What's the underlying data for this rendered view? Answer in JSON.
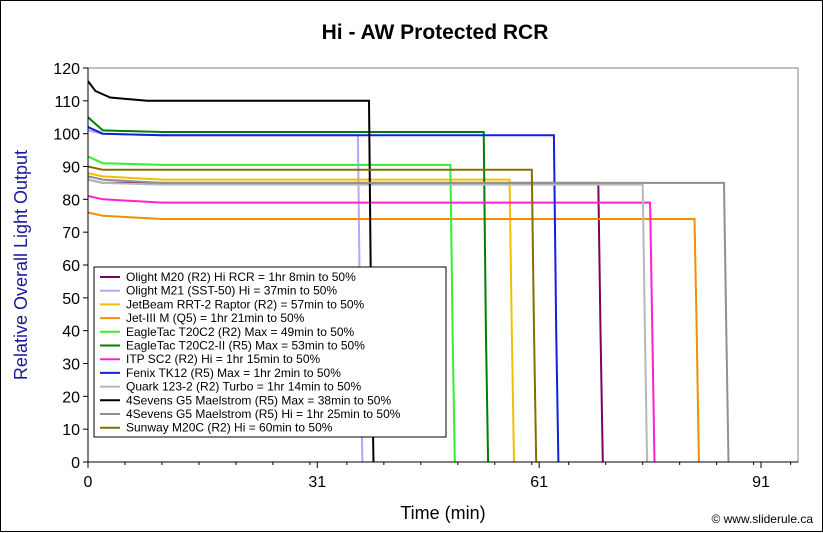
{
  "chart_data": {
    "type": "line",
    "title": "Hi - AW Protected RCR",
    "xlabel": "Time (min)",
    "ylabel": "Relative Overall Light Output",
    "xlim": [
      0,
      96
    ],
    "ylim": [
      0,
      120
    ],
    "x_ticks": [
      0,
      31,
      61,
      91
    ],
    "y_ticks": [
      0,
      10,
      20,
      30,
      40,
      50,
      60,
      70,
      80,
      90,
      100,
      110,
      120
    ],
    "grid": false,
    "legend_position": "lower-left",
    "credit": "© www.sliderule.ca",
    "series": [
      {
        "name": "Olight M20 (R2) Hi RCR = 1hr 8min to 50%",
        "color": "#800060",
        "x": [
          0,
          2,
          10,
          69,
          69.3,
          69.6
        ],
        "y": [
          86,
          85,
          85,
          85,
          40,
          0
        ]
      },
      {
        "name": "Olight M21 (SST-50) Hi = 37min to 50%",
        "color": "#c0a0ff",
        "x": [
          0,
          2,
          10,
          36.5,
          36.8,
          37.1
        ],
        "y": [
          101,
          100,
          99.5,
          99.5,
          40,
          0
        ]
      },
      {
        "name": "JetBeam RRT-2 Raptor (R2) = 57min to 50%",
        "color": "#f0c000",
        "x": [
          0,
          2,
          10,
          57,
          57.3,
          57.6
        ],
        "y": [
          88,
          87,
          86,
          86,
          40,
          0
        ]
      },
      {
        "name": "Jet-III M (Q5) = 1hr 21min to 50%",
        "color": "#f09000",
        "x": [
          0,
          2,
          10,
          82,
          82.3,
          82.6
        ],
        "y": [
          76,
          75,
          74,
          74,
          40,
          0
        ]
      },
      {
        "name": "EagleTac T20C2 (R2) Max = 49min to 50%",
        "color": "#33ee33",
        "x": [
          0,
          2,
          10,
          49,
          49.3,
          49.6
        ],
        "y": [
          93,
          91,
          90.5,
          90.5,
          40,
          0
        ]
      },
      {
        "name": "EagleTac T20C2-II (R5) Max = 53min to 50%",
        "color": "#008000",
        "x": [
          0,
          2,
          10,
          53.5,
          53.8,
          54.1
        ],
        "y": [
          105,
          101,
          100.5,
          100.5,
          40,
          0
        ]
      },
      {
        "name": "ITP SC2 (R2) Hi = 1hr 15min to 50%",
        "color": "#ff20d0",
        "x": [
          0,
          2,
          10,
          76,
          76.3,
          76.6
        ],
        "y": [
          81,
          80,
          79,
          79,
          40,
          0
        ]
      },
      {
        "name": "Fenix TK12 (R5) Max = 1hr 2min to 50%",
        "color": "#1020e0",
        "x": [
          0,
          2,
          10,
          63,
          63.3,
          63.6
        ],
        "y": [
          102,
          100,
          99.5,
          99.5,
          40,
          0
        ]
      },
      {
        "name": "Quark 123-2 (R2) Turbo = 1hr 14min to 50%",
        "color": "#b8b8b8",
        "x": [
          0,
          2,
          10,
          75,
          75.3,
          75.6
        ],
        "y": [
          86,
          85,
          84.5,
          84.5,
          40,
          0
        ]
      },
      {
        "name": "4Sevens G5 Maelstrom (R5) Max = 38min to 50%",
        "color": "#000000",
        "x": [
          0,
          1,
          3,
          8,
          38,
          38.3,
          38.6
        ],
        "y": [
          116,
          113,
          111,
          110,
          110,
          40,
          0
        ]
      },
      {
        "name": "4Sevens G5 Maelstrom (R5) Hi = 1hr 25min to 50%",
        "color": "#909090",
        "x": [
          0,
          2,
          10,
          86,
          86.3,
          86.6
        ],
        "y": [
          87,
          86,
          85,
          85,
          40,
          0
        ]
      },
      {
        "name": "Sunway M20C (R2) Hi = 60min to 50%",
        "color": "#807000",
        "x": [
          0,
          2,
          10,
          60,
          60.3,
          60.6
        ],
        "y": [
          90,
          89,
          89,
          89,
          40,
          0
        ]
      }
    ]
  }
}
